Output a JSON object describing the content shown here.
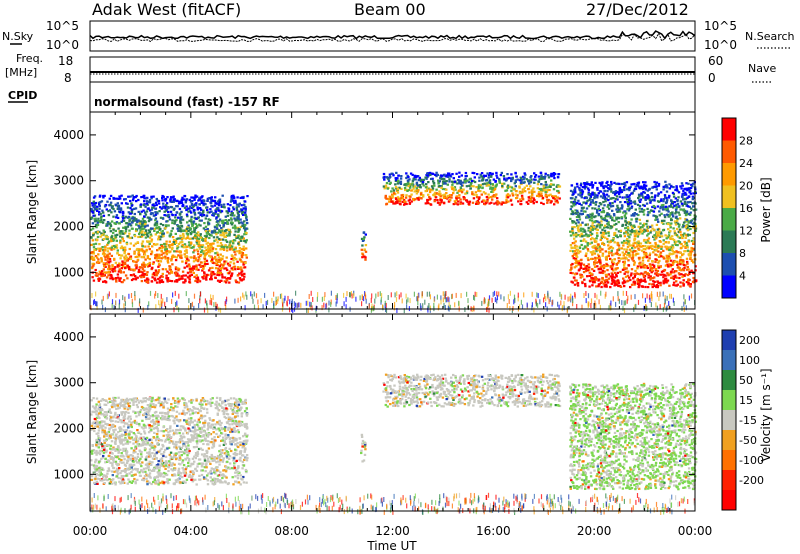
{
  "header": {
    "station": "Adak West (fitACF)",
    "beam": "Beam 00",
    "date": "27/Dec/2012"
  },
  "panel_labels": {
    "nsky": "N.Sky",
    "nsearch": "N.Search",
    "freq_line1": "Freq.",
    "freq_line2": "[MHz]",
    "nave": "Nave",
    "cpid": "CPID",
    "cpid_value": "normalsound (fast) -157 RF"
  },
  "colors": {
    "power_scale": [
      "#0000ff",
      "#1d4fb0",
      "#2b7a55",
      "#4aaa46",
      "#f0c020",
      "#ff9a00",
      "#ff5a00",
      "#ff0000"
    ],
    "velocity_scale": [
      "#1f3fb0",
      "#3a70b8",
      "#2e8b40",
      "#7dd850",
      "#c8c8c0",
      "#f0a020",
      "#ff7000",
      "#ff2000",
      "#ff0000"
    ]
  },
  "chart_data": [
    {
      "type": "line",
      "title": "N.Sky / N.Search",
      "left_ticks": [
        "10^5",
        "10^0"
      ],
      "right_ticks": [
        "10^5",
        "10^0"
      ],
      "series": [
        {
          "name": "N.Sky",
          "description_level": 0.55
        },
        {
          "name": "N.Search",
          "description_level": 0.4
        }
      ]
    },
    {
      "type": "line",
      "title": "Freq. [MHz] / Nave",
      "left_ticks": [
        "18",
        "8"
      ],
      "right_ticks": [
        "60",
        "0"
      ],
      "series": [
        {
          "name": "Freq.",
          "value_mhz": 10
        },
        {
          "name": "Nave",
          "value": 18
        }
      ]
    },
    {
      "type": "heatmap",
      "quantity": "Power",
      "ylabel": "Slant Range [km]",
      "xlabel": "Time UT",
      "x_ticks": [
        "00:00",
        "04:00",
        "08:00",
        "12:00",
        "16:00",
        "20:00",
        "00:00"
      ],
      "y_ticks": [
        "1000",
        "2000",
        "3000",
        "4000"
      ],
      "ylim": [
        200,
        4500
      ],
      "colorbar_label": "Power [dB]",
      "colorbar_ticks": [
        "4",
        "8",
        "12",
        "16",
        "20",
        "24",
        "28"
      ],
      "echo_regions_hours_km": [
        {
          "t0": 0.0,
          "t1": 6.2,
          "r0": 800,
          "r1": 2700
        },
        {
          "t0": 11.6,
          "t1": 18.6,
          "r0": 2500,
          "r1": 3200
        },
        {
          "t0": 10.7,
          "t1": 10.9,
          "r0": 1300,
          "r1": 1900
        },
        {
          "t0": 19.0,
          "t1": 24.0,
          "r0": 700,
          "r1": 3000
        }
      ]
    },
    {
      "type": "heatmap",
      "quantity": "Velocity",
      "ylabel": "Slant Range [km]",
      "xlabel": "Time UT",
      "x_ticks": [
        "00:00",
        "04:00",
        "08:00",
        "12:00",
        "16:00",
        "20:00",
        "00:00"
      ],
      "y_ticks": [
        "1000",
        "2000",
        "3000",
        "4000"
      ],
      "ylim": [
        200,
        4500
      ],
      "colorbar_label": "Velocity [m s⁻¹]",
      "colorbar_ticks": [
        "200",
        "100",
        "50",
        "15",
        "-15",
        "-50",
        "-100",
        "-200"
      ]
    }
  ],
  "time_axis_label": "Time UT"
}
